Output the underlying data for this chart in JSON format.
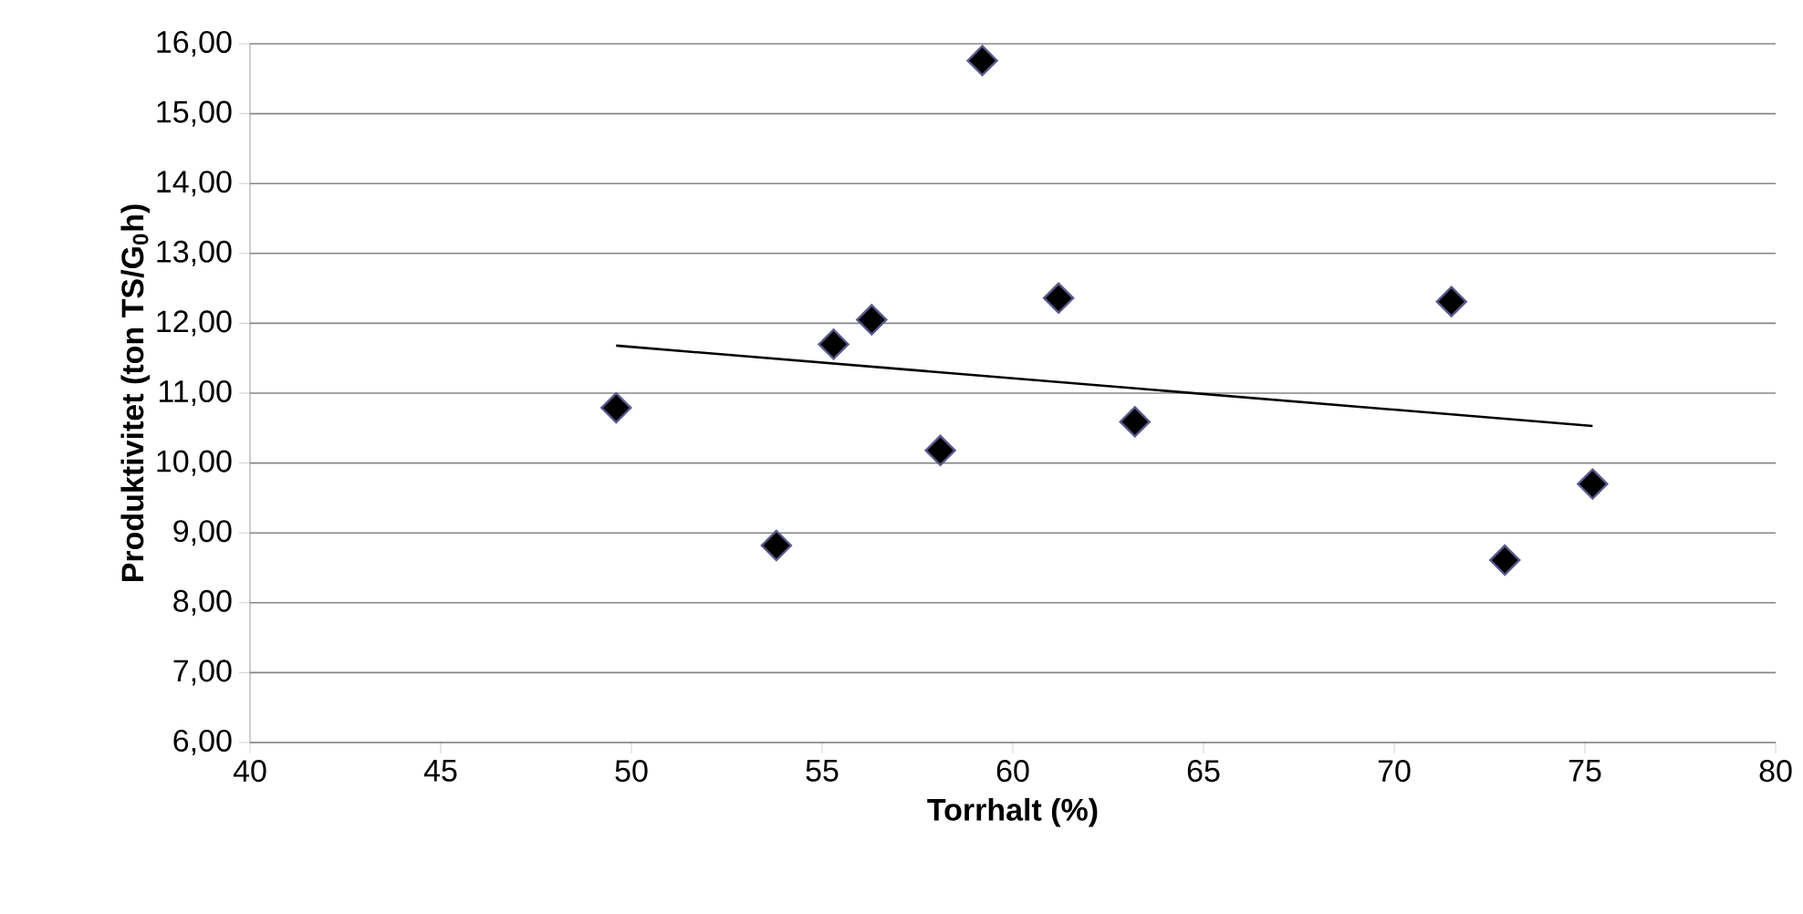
{
  "chart_data": {
    "type": "scatter",
    "xlabel": "Torrhalt (%)",
    "ylabel": "Produktivitet (ton TS/G$_{0}$h)",
    "xlim": [
      40,
      80
    ],
    "xticks": [
      40,
      45,
      50,
      55,
      60,
      65,
      70,
      75,
      80
    ],
    "ylim": [
      6,
      16
    ],
    "yticks": [
      {
        "value": 6,
        "label": "6,00"
      },
      {
        "value": 7,
        "label": "7,00"
      },
      {
        "value": 8,
        "label": "8,00"
      },
      {
        "value": 9,
        "label": "9,00"
      },
      {
        "value": 10,
        "label": "10,00"
      },
      {
        "value": 11,
        "label": "11,00"
      },
      {
        "value": 12,
        "label": "12,00"
      },
      {
        "value": 13,
        "label": "13,00"
      },
      {
        "value": 14,
        "label": "14,00"
      },
      {
        "value": 15,
        "label": "15,00"
      },
      {
        "value": 16,
        "label": "16,00"
      }
    ],
    "grid": "y",
    "series": [
      {
        "marker": "diamond",
        "color": "#000000",
        "x": [
          49.6,
          53.8,
          55.3,
          56.3,
          58.1,
          59.2,
          61.2,
          63.2,
          71.5,
          72.9,
          75.2
        ],
        "values": [
          10.79,
          8.82,
          11.7,
          12.05,
          10.18,
          15.76,
          12.36,
          10.59,
          12.31,
          8.61,
          9.7
        ]
      },
      {
        "type": "line",
        "marker": "none",
        "color": "#000000",
        "x": [
          49.6,
          75.2
        ],
        "values": [
          11.68,
          10.53
        ]
      }
    ]
  }
}
